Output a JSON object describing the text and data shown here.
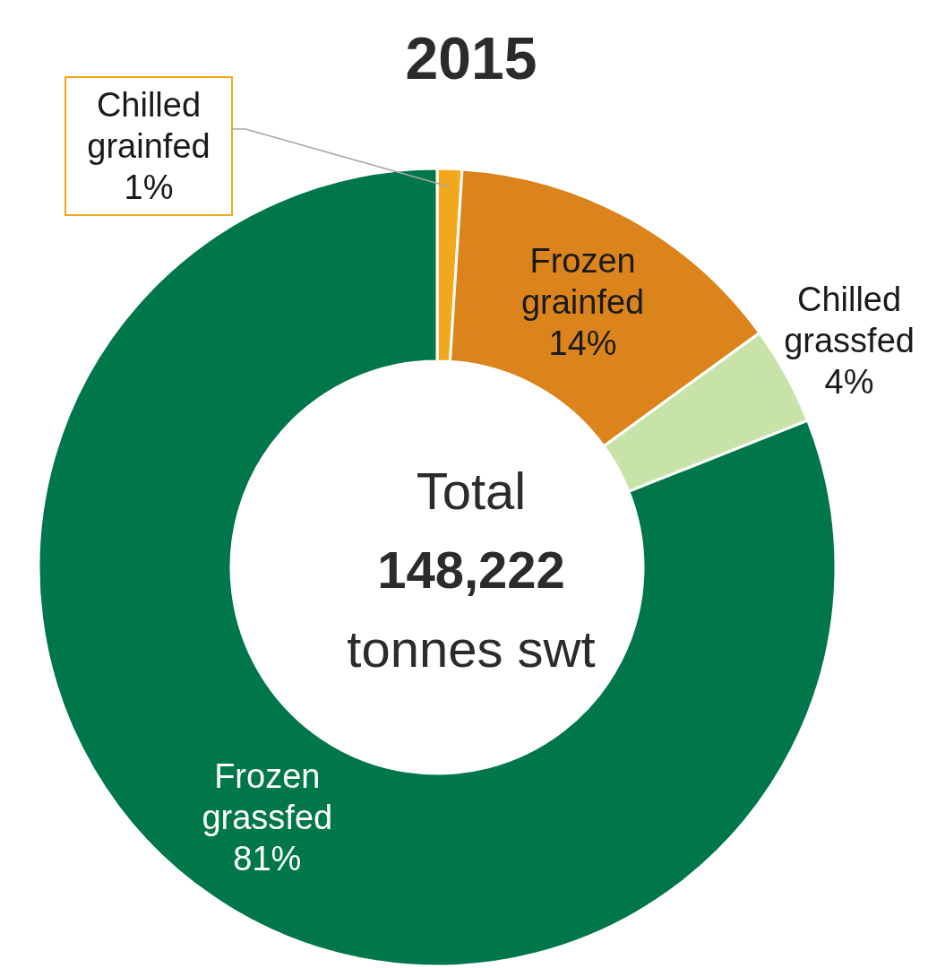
{
  "chart_data": {
    "type": "donut",
    "title": "2015",
    "categories": [
      "Chilled grainfed",
      "Frozen grainfed",
      "Chilled grassfed",
      "Frozen grassfed"
    ],
    "values": [
      1,
      14,
      4,
      81
    ],
    "colors": [
      "#f3a81c",
      "#dc841c",
      "#c8e3a7",
      "#00774a"
    ],
    "value_labels": [
      "1%",
      "14%",
      "4%",
      "81%"
    ],
    "annotations": [
      "Total",
      "148,222",
      "tonnes swt"
    ]
  }
}
